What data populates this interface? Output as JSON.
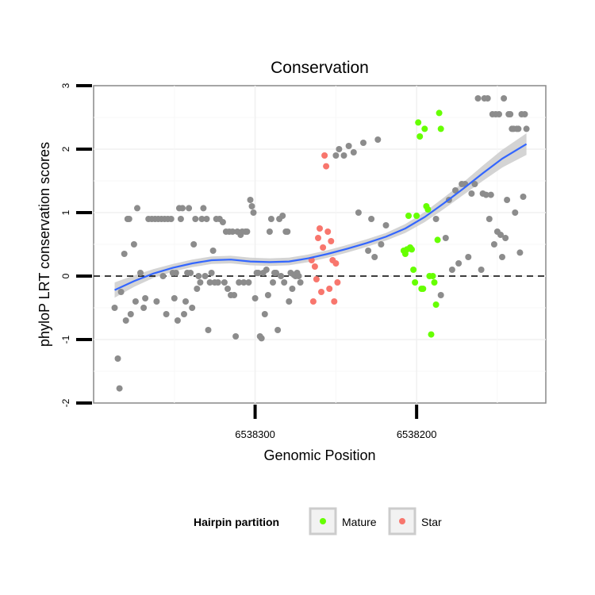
{
  "chart_data": {
    "type": "scatter",
    "title": "Conservation",
    "xlabel": "Genomic Position",
    "ylabel": "phyloP LRT conservation scores",
    "x_reversed": true,
    "xlim": [
      6538400,
      6538120
    ],
    "ylim": [
      -2,
      3
    ],
    "x_ticks": [
      6538300,
      6538200
    ],
    "x_tick_labels": [
      "6538300",
      "6538200"
    ],
    "y_ticks": [
      -2,
      -1,
      0,
      1,
      2,
      3
    ],
    "y_tick_labels": [
      "-2",
      "-1",
      "0",
      "1",
      "2",
      "3"
    ],
    "grid": true,
    "reference_line": {
      "y": 0,
      "style": "dashed"
    },
    "legend": {
      "title": "Hairpin partition",
      "placement": "bottom",
      "entries": [
        {
          "label": "Mature",
          "color": "#66ff00"
        },
        {
          "label": "Star",
          "color": "#f8766d"
        }
      ]
    },
    "colors": {
      "other": "#8c8c8c",
      "smooth": "#3366ff",
      "ribbon": "#cccccc"
    },
    "series": [
      {
        "name": "Other",
        "color": "#8c8c8c",
        "points": [
          [
            6538387,
            -0.5
          ],
          [
            6538385,
            -1.3
          ],
          [
            6538384,
            -1.77
          ],
          [
            6538383,
            -0.25
          ],
          [
            6538381,
            0.35
          ],
          [
            6538380,
            -0.7
          ],
          [
            6538379,
            0.9
          ],
          [
            6538378,
            0.9
          ],
          [
            6538377,
            -0.6
          ],
          [
            6538375,
            0.5
          ],
          [
            6538374,
            -0.4
          ],
          [
            6538373,
            1.07
          ],
          [
            6538371,
            0.05
          ],
          [
            6538369,
            -0.5
          ],
          [
            6538368,
            -0.35
          ],
          [
            6538366,
            0.9
          ],
          [
            6538364,
            0.9
          ],
          [
            6538362,
            0.9
          ],
          [
            6538361,
            -0.4
          ],
          [
            6538360,
            0.9
          ],
          [
            6538358,
            0.9
          ],
          [
            6538357,
            0.0
          ],
          [
            6538356,
            0.9
          ],
          [
            6538355,
            -0.6
          ],
          [
            6538354,
            0.9
          ],
          [
            6538352,
            0.9
          ],
          [
            6538351,
            0.05
          ],
          [
            6538350,
            -0.35
          ],
          [
            6538349,
            0.05
          ],
          [
            6538348,
            -0.7
          ],
          [
            6538347,
            1.07
          ],
          [
            6538346,
            0.9
          ],
          [
            6538345,
            1.07
          ],
          [
            6538344,
            -0.6
          ],
          [
            6538343,
            -0.4
          ],
          [
            6538342,
            0.05
          ],
          [
            6538341,
            1.07
          ],
          [
            6538340,
            0.05
          ],
          [
            6538339,
            -0.5
          ],
          [
            6538338,
            0.5
          ],
          [
            6538337,
            0.9
          ],
          [
            6538336,
            -0.2
          ],
          [
            6538335,
            0.0
          ],
          [
            6538334,
            -0.1
          ],
          [
            6538333,
            0.9
          ],
          [
            6538332,
            1.07
          ],
          [
            6538331,
            0.0
          ],
          [
            6538330,
            0.9
          ],
          [
            6538329,
            -0.85
          ],
          [
            6538328,
            -0.1
          ],
          [
            6538327,
            0.05
          ],
          [
            6538326,
            0.4
          ],
          [
            6538325,
            -0.1
          ],
          [
            6538324,
            0.9
          ],
          [
            6538323,
            -0.1
          ],
          [
            6538322,
            0.9
          ],
          [
            6538320,
            0.85
          ],
          [
            6538319,
            -0.1
          ],
          [
            6538318,
            0.7
          ],
          [
            6538317,
            -0.2
          ],
          [
            6538316,
            0.7
          ],
          [
            6538315,
            -0.3
          ],
          [
            6538314,
            0.7
          ],
          [
            6538313,
            -0.3
          ],
          [
            6538312,
            -0.95
          ],
          [
            6538311,
            0.7
          ],
          [
            6538310,
            -0.1
          ],
          [
            6538309,
            0.65
          ],
          [
            6538308,
            0.7
          ],
          [
            6538307,
            -0.1
          ],
          [
            6538306,
            0.7
          ],
          [
            6538305,
            0.7
          ],
          [
            6538304,
            -0.1
          ],
          [
            6538303,
            1.2
          ],
          [
            6538302,
            1.1
          ],
          [
            6538301,
            1.0
          ],
          [
            6538300,
            -0.35
          ],
          [
            6538299,
            0.05
          ],
          [
            6538298,
            0.05
          ],
          [
            6538297,
            -0.95
          ],
          [
            6538296,
            -0.98
          ],
          [
            6538295,
            0.05
          ],
          [
            6538294,
            -0.6
          ],
          [
            6538293,
            0.1
          ],
          [
            6538292,
            -0.3
          ],
          [
            6538291,
            0.7
          ],
          [
            6538290,
            0.9
          ],
          [
            6538289,
            -0.1
          ],
          [
            6538288,
            0.05
          ],
          [
            6538287,
            0.05
          ],
          [
            6538286,
            -0.85
          ],
          [
            6538285,
            0.9
          ],
          [
            6538284,
            0.0
          ],
          [
            6538283,
            0.95
          ],
          [
            6538282,
            -0.1
          ],
          [
            6538281,
            0.7
          ],
          [
            6538280,
            0.7
          ],
          [
            6538279,
            -0.4
          ],
          [
            6538278,
            0.05
          ],
          [
            6538277,
            -0.2
          ],
          [
            6538276,
            0.02
          ],
          [
            6538275,
            0.0
          ],
          [
            6538274,
            0.05
          ],
          [
            6538273,
            0.0
          ],
          [
            6538272,
            -0.1
          ],
          [
            6538250,
            1.9
          ],
          [
            6538248,
            2.0
          ],
          [
            6538245,
            1.9
          ],
          [
            6538242,
            2.05
          ],
          [
            6538239,
            1.95
          ],
          [
            6538236,
            1.0
          ],
          [
            6538233,
            2.1
          ],
          [
            6538230,
            0.4
          ],
          [
            6538228,
            0.9
          ],
          [
            6538226,
            0.3
          ],
          [
            6538224,
            2.15
          ],
          [
            6538222,
            0.5
          ],
          [
            6538219,
            0.8
          ],
          [
            6538188,
            0.9
          ],
          [
            6538185,
            -0.3
          ],
          [
            6538182,
            0.6
          ],
          [
            6538180,
            1.2
          ],
          [
            6538178,
            0.1
          ],
          [
            6538176,
            1.35
          ],
          [
            6538174,
            0.2
          ],
          [
            6538172,
            1.45
          ],
          [
            6538170,
            1.45
          ],
          [
            6538168,
            0.3
          ],
          [
            6538166,
            1.3
          ],
          [
            6538164,
            1.45
          ],
          [
            6538162,
            2.8
          ],
          [
            6538160,
            0.1
          ],
          [
            6538159,
            1.3
          ],
          [
            6538158,
            2.8
          ],
          [
            6538157,
            1.28
          ],
          [
            6538156,
            2.8
          ],
          [
            6538155,
            0.9
          ],
          [
            6538154,
            1.28
          ],
          [
            6538153,
            2.55
          ],
          [
            6538152,
            0.5
          ],
          [
            6538151,
            2.55
          ],
          [
            6538150,
            0.7
          ],
          [
            6538149,
            2.55
          ],
          [
            6538148,
            0.65
          ],
          [
            6538147,
            0.3
          ],
          [
            6538146,
            2.8
          ],
          [
            6538145,
            0.6
          ],
          [
            6538144,
            1.2
          ],
          [
            6538143,
            2.55
          ],
          [
            6538142,
            2.55
          ],
          [
            6538141,
            2.32
          ],
          [
            6538140,
            2.32
          ],
          [
            6538139,
            1.0
          ],
          [
            6538138,
            2.32
          ],
          [
            6538137,
            2.32
          ],
          [
            6538136,
            0.37
          ],
          [
            6538135,
            2.55
          ],
          [
            6538134,
            1.25
          ],
          [
            6538133,
            2.55
          ],
          [
            6538132,
            2.32
          ]
        ]
      },
      {
        "name": "Star",
        "color": "#f8766d",
        "points": [
          [
            6538265,
            0.25
          ],
          [
            6538264,
            -0.4
          ],
          [
            6538263,
            0.15
          ],
          [
            6538262,
            -0.05
          ],
          [
            6538261,
            0.6
          ],
          [
            6538260,
            0.75
          ],
          [
            6538259,
            -0.25
          ],
          [
            6538258,
            0.45
          ],
          [
            6538257,
            1.9
          ],
          [
            6538256,
            1.73
          ],
          [
            6538255,
            0.7
          ],
          [
            6538254,
            -0.2
          ],
          [
            6538253,
            0.55
          ],
          [
            6538252,
            0.25
          ],
          [
            6538251,
            -0.4
          ],
          [
            6538250,
            0.2
          ],
          [
            6538249,
            -0.1
          ]
        ]
      },
      {
        "name": "Mature",
        "color": "#66ff00",
        "points": [
          [
            6538208,
            0.4
          ],
          [
            6538207,
            0.35
          ],
          [
            6538206,
            0.42
          ],
          [
            6538205,
            0.95
          ],
          [
            6538204,
            0.45
          ],
          [
            6538203,
            0.42
          ],
          [
            6538202,
            0.1
          ],
          [
            6538201,
            -0.1
          ],
          [
            6538200,
            0.95
          ],
          [
            6538199,
            2.42
          ],
          [
            6538198,
            2.2
          ],
          [
            6538197,
            -0.2
          ],
          [
            6538196,
            -0.2
          ],
          [
            6538195,
            2.32
          ],
          [
            6538194,
            1.1
          ],
          [
            6538193,
            1.05
          ],
          [
            6538192,
            0.0
          ],
          [
            6538191,
            -0.92
          ],
          [
            6538190,
            0.0
          ],
          [
            6538189,
            -0.1
          ],
          [
            6538188,
            -0.45
          ],
          [
            6538187,
            0.57
          ],
          [
            6538186,
            2.57
          ],
          [
            6538185,
            2.32
          ]
        ]
      }
    ],
    "smooth": {
      "method": "loess",
      "x": [
        6538387,
        6538375,
        6538363,
        6538351,
        6538339,
        6538327,
        6538315,
        6538303,
        6538291,
        6538279,
        6538267,
        6538255,
        6538243,
        6538231,
        6538219,
        6538207,
        6538195,
        6538183,
        6538171,
        6538159,
        6538147,
        6538132
      ],
      "y": [
        -0.22,
        -0.08,
        0.04,
        0.13,
        0.2,
        0.25,
        0.26,
        0.23,
        0.22,
        0.23,
        0.28,
        0.35,
        0.43,
        0.52,
        0.62,
        0.75,
        0.93,
        1.15,
        1.38,
        1.62,
        1.85,
        2.08
      ],
      "band": [
        0.12,
        0.09,
        0.07,
        0.06,
        0.06,
        0.06,
        0.06,
        0.06,
        0.06,
        0.06,
        0.06,
        0.06,
        0.06,
        0.06,
        0.06,
        0.07,
        0.08,
        0.09,
        0.1,
        0.12,
        0.14,
        0.17
      ]
    }
  }
}
